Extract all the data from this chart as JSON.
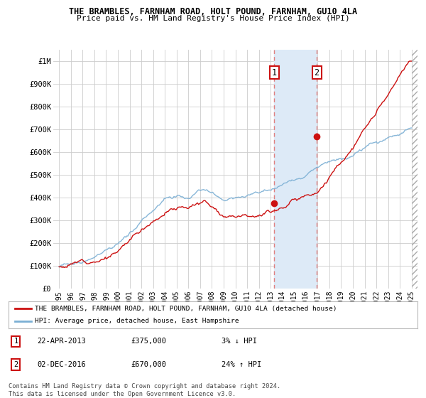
{
  "title": "THE BRAMBLES, FARNHAM ROAD, HOLT POUND, FARNHAM, GU10 4LA",
  "subtitle": "Price paid vs. HM Land Registry's House Price Index (HPI)",
  "ylabel_ticks": [
    "£0",
    "£100K",
    "£200K",
    "£300K",
    "£400K",
    "£500K",
    "£600K",
    "£700K",
    "£800K",
    "£900K",
    "£1M"
  ],
  "ytick_values": [
    0,
    100000,
    200000,
    300000,
    400000,
    500000,
    600000,
    700000,
    800000,
    900000,
    1000000
  ],
  "xlim_start": 1994.5,
  "xlim_end": 2025.5,
  "ylim": [
    0,
    1050000
  ],
  "hpi_color": "#7bafd4",
  "price_color": "#cc1111",
  "dashed_line_color": "#e08080",
  "highlight_fill": "#ddeaf7",
  "transaction1_year": 2013.31,
  "transaction1_price": 375000,
  "transaction2_year": 2016.92,
  "transaction2_price": 670000,
  "legend_line1": "THE BRAMBLES, FARNHAM ROAD, HOLT POUND, FARNHAM, GU10 4LA (detached house)",
  "legend_line2": "HPI: Average price, detached house, East Hampshire",
  "note1_num": "1",
  "note1_date": "22-APR-2013",
  "note1_price": "£375,000",
  "note1_pct": "3% ↓ HPI",
  "note2_num": "2",
  "note2_date": "02-DEC-2016",
  "note2_price": "£670,000",
  "note2_pct": "24% ↑ HPI",
  "footer": "Contains HM Land Registry data © Crown copyright and database right 2024.\nThis data is licensed under the Open Government Licence v3.0.",
  "background_color": "#ffffff",
  "grid_color": "#cccccc"
}
